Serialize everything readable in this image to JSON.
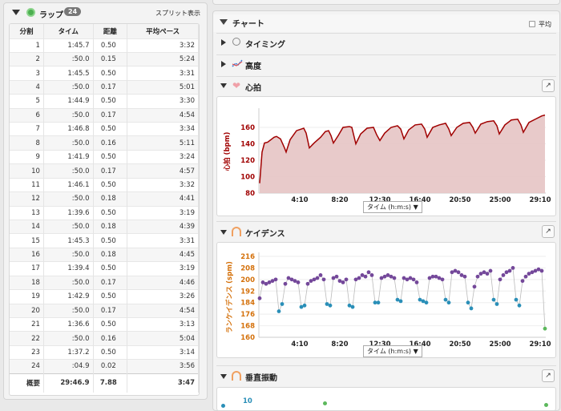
{
  "laps": {
    "title": "ラップ",
    "count": "24",
    "split_view_label": "スプリット表示",
    "columns": [
      "分割",
      "タイム",
      "距離",
      "平均ペース"
    ],
    "rows": [
      [
        "1",
        "1:45.7",
        "0.50",
        "3:32"
      ],
      [
        "2",
        ":50.0",
        "0.15",
        "5:24"
      ],
      [
        "3",
        "1:45.5",
        "0.50",
        "3:31"
      ],
      [
        "4",
        ":50.0",
        "0.17",
        "5:01"
      ],
      [
        "5",
        "1:44.9",
        "0.50",
        "3:30"
      ],
      [
        "6",
        ":50.0",
        "0.17",
        "4:54"
      ],
      [
        "7",
        "1:46.8",
        "0.50",
        "3:34"
      ],
      [
        "8",
        ":50.0",
        "0.16",
        "5:11"
      ],
      [
        "9",
        "1:41.9",
        "0.50",
        "3:24"
      ],
      [
        "10",
        ":50.0",
        "0.17",
        "4:57"
      ],
      [
        "11",
        "1:46.1",
        "0.50",
        "3:32"
      ],
      [
        "12",
        ":50.0",
        "0.18",
        "4:41"
      ],
      [
        "13",
        "1:39.6",
        "0.50",
        "3:19"
      ],
      [
        "14",
        ":50.0",
        "0.18",
        "4:39"
      ],
      [
        "15",
        "1:45.3",
        "0.50",
        "3:31"
      ],
      [
        "16",
        ":50.0",
        "0.18",
        "4:45"
      ],
      [
        "17",
        "1:39.4",
        "0.50",
        "3:19"
      ],
      [
        "18",
        ":50.0",
        "0.17",
        "4:46"
      ],
      [
        "19",
        "1:42.9",
        "0.50",
        "3:26"
      ],
      [
        "20",
        ":50.0",
        "0.17",
        "4:54"
      ],
      [
        "21",
        "1:36.6",
        "0.50",
        "3:13"
      ],
      [
        "22",
        ":50.0",
        "0.16",
        "5:04"
      ],
      [
        "23",
        "1:37.2",
        "0.50",
        "3:14"
      ],
      [
        "24",
        ":04.9",
        "0.02",
        "3:56"
      ]
    ],
    "summary": [
      "概要",
      "29:46.9",
      "7.88",
      "3:47"
    ]
  },
  "charts": {
    "title": "チャート",
    "average_label": "平均",
    "average_checked": false,
    "sections": [
      {
        "label": "タイミング",
        "icon": "clock-icon",
        "expanded": false
      },
      {
        "label": "高度",
        "icon": "elevation-icon",
        "expanded": false
      },
      {
        "label": "心拍",
        "icon": "heart-icon",
        "expanded": true
      },
      {
        "label": "ケイデンス",
        "icon": "cadence-icon",
        "expanded": true
      },
      {
        "label": "垂直振動",
        "icon": "vertical-oscillation-icon",
        "expanded": true
      }
    ],
    "x_axis_selector": "タイム (h:m:s)",
    "vo_first_tick": "10"
  },
  "chart_data": [
    {
      "type": "area",
      "ylabel": "心拍 (bpm)",
      "ylim": [
        80,
        180
      ],
      "yticks": [
        "80",
        "100",
        "120",
        "140",
        "160"
      ],
      "xticks": [
        "4:10",
        "8:20",
        "12:30",
        "16:40",
        "20:50",
        "25:00",
        "29:10"
      ],
      "xlabel": "タイム (h:m:s)",
      "color": "#a00000",
      "fill": "#e6c4c4",
      "points": [
        [
          0,
          92
        ],
        [
          15,
          130
        ],
        [
          30,
          141
        ],
        [
          50,
          142
        ],
        [
          90,
          148
        ],
        [
          105,
          149
        ],
        [
          130,
          146
        ],
        [
          155,
          135
        ],
        [
          165,
          130
        ],
        [
          190,
          145
        ],
        [
          230,
          156
        ],
        [
          260,
          158
        ],
        [
          275,
          159
        ],
        [
          290,
          153
        ],
        [
          310,
          135
        ],
        [
          340,
          141
        ],
        [
          380,
          148
        ],
        [
          410,
          155
        ],
        [
          430,
          156
        ],
        [
          445,
          150
        ],
        [
          460,
          141
        ],
        [
          490,
          150
        ],
        [
          520,
          160
        ],
        [
          560,
          161
        ],
        [
          575,
          160
        ],
        [
          600,
          140
        ],
        [
          630,
          152
        ],
        [
          670,
          159
        ],
        [
          710,
          160
        ],
        [
          730,
          151
        ],
        [
          750,
          144
        ],
        [
          780,
          153
        ],
        [
          820,
          160
        ],
        [
          860,
          162
        ],
        [
          880,
          158
        ],
        [
          900,
          146
        ],
        [
          930,
          157
        ],
        [
          970,
          163
        ],
        [
          1010,
          164
        ],
        [
          1030,
          158
        ],
        [
          1045,
          148
        ],
        [
          1080,
          160
        ],
        [
          1120,
          163
        ],
        [
          1160,
          165
        ],
        [
          1180,
          158
        ],
        [
          1195,
          150
        ],
        [
          1230,
          160
        ],
        [
          1270,
          165
        ],
        [
          1310,
          166
        ],
        [
          1330,
          160
        ],
        [
          1345,
          153
        ],
        [
          1380,
          164
        ],
        [
          1420,
          167
        ],
        [
          1460,
          168
        ],
        [
          1480,
          162
        ],
        [
          1495,
          152
        ],
        [
          1530,
          163
        ],
        [
          1570,
          169
        ],
        [
          1610,
          170
        ],
        [
          1630,
          163
        ],
        [
          1645,
          154
        ],
        [
          1680,
          166
        ],
        [
          1720,
          170
        ],
        [
          1760,
          174
        ],
        [
          1780,
          175
        ]
      ]
    },
    {
      "type": "scatter",
      "ylabel": "ランケイデンス (spm)",
      "ylim": [
        160,
        216
      ],
      "yticks": [
        "160",
        "168",
        "176",
        "184",
        "192",
        "200",
        "208",
        "216"
      ],
      "xticks": [
        "4:10",
        "8:20",
        "12:30",
        "16:40",
        "20:50",
        "25:00",
        "29:10"
      ],
      "xlabel": "タイム (h:m:s)",
      "zone_colors": {
        "high": "#74489a",
        "mid": "#2a8fb8",
        "low": "#5cb85c"
      },
      "points": [
        [
          0,
          187
        ],
        [
          20,
          198
        ],
        [
          40,
          197
        ],
        [
          60,
          198
        ],
        [
          80,
          199
        ],
        [
          100,
          200
        ],
        [
          120,
          178
        ],
        [
          140,
          183
        ],
        [
          160,
          197
        ],
        [
          180,
          201
        ],
        [
          200,
          200
        ],
        [
          220,
          199
        ],
        [
          240,
          198
        ],
        [
          260,
          181
        ],
        [
          280,
          182
        ],
        [
          300,
          197
        ],
        [
          320,
          199
        ],
        [
          340,
          200
        ],
        [
          360,
          201
        ],
        [
          380,
          203
        ],
        [
          400,
          200
        ],
        [
          420,
          183
        ],
        [
          440,
          182
        ],
        [
          460,
          201
        ],
        [
          480,
          202
        ],
        [
          500,
          199
        ],
        [
          520,
          198
        ],
        [
          540,
          200
        ],
        [
          560,
          182
        ],
        [
          580,
          181
        ],
        [
          600,
          200
        ],
        [
          620,
          201
        ],
        [
          640,
          203
        ],
        [
          660,
          202
        ],
        [
          680,
          205
        ],
        [
          700,
          203
        ],
        [
          720,
          184
        ],
        [
          740,
          184
        ],
        [
          760,
          201
        ],
        [
          780,
          202
        ],
        [
          800,
          203
        ],
        [
          820,
          202
        ],
        [
          840,
          201
        ],
        [
          860,
          186
        ],
        [
          880,
          185
        ],
        [
          900,
          201
        ],
        [
          920,
          200
        ],
        [
          940,
          201
        ],
        [
          960,
          200
        ],
        [
          980,
          198
        ],
        [
          1000,
          186
        ],
        [
          1020,
          185
        ],
        [
          1040,
          184
        ],
        [
          1060,
          201
        ],
        [
          1080,
          202
        ],
        [
          1100,
          202
        ],
        [
          1120,
          201
        ],
        [
          1140,
          200
        ],
        [
          1160,
          186
        ],
        [
          1180,
          184
        ],
        [
          1200,
          205
        ],
        [
          1220,
          206
        ],
        [
          1240,
          205
        ],
        [
          1260,
          203
        ],
        [
          1280,
          202
        ],
        [
          1300,
          184
        ],
        [
          1320,
          180
        ],
        [
          1340,
          195
        ],
        [
          1360,
          202
        ],
        [
          1380,
          204
        ],
        [
          1400,
          205
        ],
        [
          1420,
          204
        ],
        [
          1440,
          206
        ],
        [
          1460,
          186
        ],
        [
          1480,
          183
        ],
        [
          1500,
          200
        ],
        [
          1520,
          203
        ],
        [
          1540,
          205
        ],
        [
          1560,
          206
        ],
        [
          1580,
          208
        ],
        [
          1600,
          186
        ],
        [
          1620,
          182
        ],
        [
          1640,
          199
        ],
        [
          1660,
          202
        ],
        [
          1680,
          204
        ],
        [
          1700,
          205
        ],
        [
          1720,
          206
        ],
        [
          1740,
          207
        ],
        [
          1760,
          206
        ],
        [
          1780,
          166
        ]
      ]
    }
  ]
}
